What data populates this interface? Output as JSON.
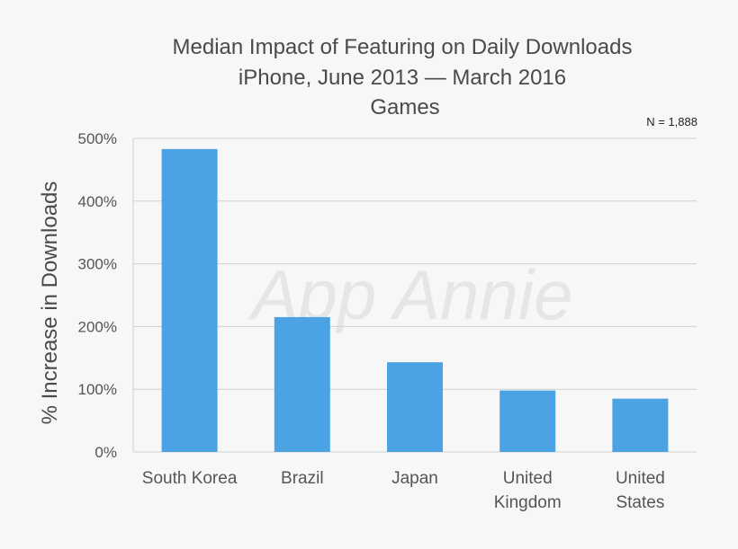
{
  "chart_data": {
    "type": "bar",
    "title_lines": [
      "Median Impact of Featuring on Daily Downloads",
      "iPhone, June 2013 — March 2016",
      "Games"
    ],
    "ylabel": "% Increase in Downloads",
    "xlabel": "",
    "note": "N = 1,888",
    "watermark": "App Annie",
    "categories": [
      [
        "South Korea"
      ],
      [
        "Brazil"
      ],
      [
        "Japan"
      ],
      [
        "United",
        "Kingdom"
      ],
      [
        "United",
        "States"
      ]
    ],
    "values": [
      483,
      215,
      143,
      98,
      85
    ],
    "ylim": [
      0,
      500
    ],
    "yticks": [
      0,
      100,
      200,
      300,
      400,
      500
    ],
    "ytick_labels": [
      "0%",
      "100%",
      "200%",
      "300%",
      "400%",
      "500%"
    ],
    "grid": true,
    "bar_color": "#4ba3e3",
    "grid_color": "#d0d0d0"
  }
}
